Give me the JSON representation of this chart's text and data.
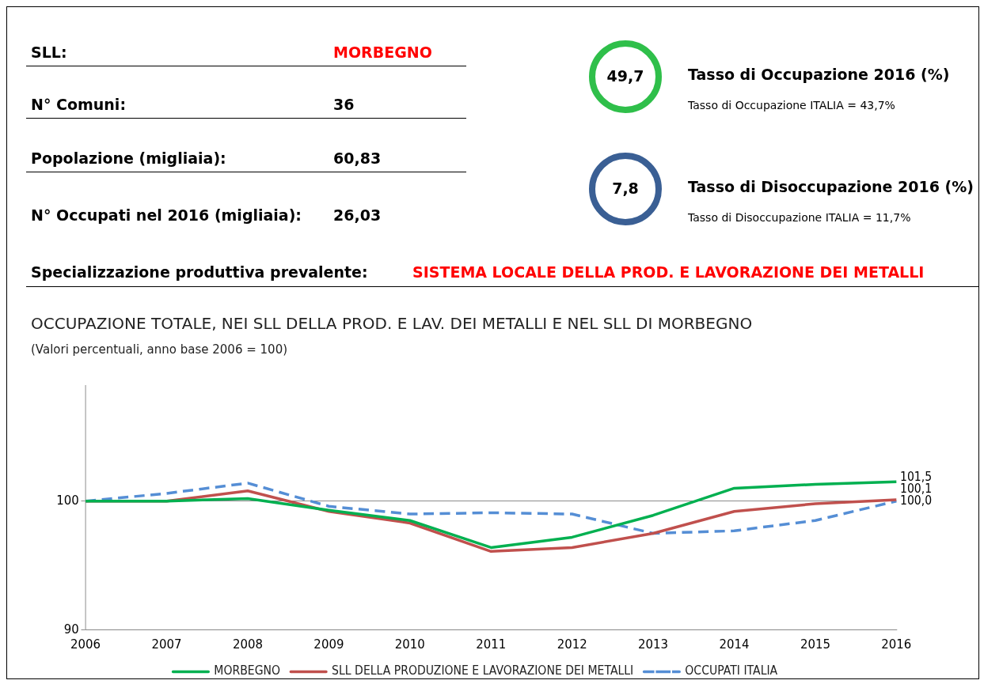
{
  "chart_data": [
    {
      "type": "other",
      "annotations": [
        "SLL:",
        "MORBEGNO",
        "N° Comuni:",
        "36",
        "Popolazione (migliaia):",
        "60,83",
        "N° Occupati nel 2016 (migliaia):",
        "26,03",
        "49,7",
        "Tasso di Occupazione 2016 (%)",
        "Tasso di Occupazione ITALIA = 43,7%",
        "7,8",
        "Tasso di Disoccupazione 2016 (%)",
        "Tasso di Disoccupazione ITALIA = 11,7%",
        "Specializzazione produttiva prevalente:",
        "SISTEMA LOCALE DELLA PROD. E LAVORAZIONE DEI METALLI"
      ]
    },
    {
      "type": "line",
      "title": "OCCUPAZIONE TOTALE, NEI SLL DELLA PROD. E LAV. DEI METALLI E NEL SLL DI MORBEGNO",
      "subtitle": "(Valori percentuali, anno base 2006 = 100)",
      "categories": [
        "2006",
        "2007",
        "2008",
        "2009",
        "2010",
        "2011",
        "2012",
        "2013",
        "2014",
        "2015",
        "2016"
      ],
      "ylim": [
        90,
        109
      ],
      "yticks": [
        90,
        100
      ],
      "grid": "y",
      "legend": "bottom",
      "marker": "none",
      "series": [
        {
          "name": "MORBEGNO",
          "color": "#00b050",
          "line_style": "solid",
          "values": [
            100,
            100,
            100.2,
            99.3,
            98.5,
            96.4,
            97.2,
            98.9,
            101.0,
            101.3,
            101.5
          ],
          "value_labels": [
            null,
            null,
            null,
            null,
            null,
            null,
            null,
            null,
            null,
            null,
            "101,5"
          ]
        },
        {
          "name": "SLL DELLA PRODUZIONE E LAVORAZIONE DEI METALLI",
          "color": "#c0504d",
          "line_style": "solid",
          "values": [
            100,
            100,
            100.8,
            99.2,
            98.3,
            96.1,
            96.4,
            97.5,
            99.2,
            99.8,
            100.1
          ],
          "value_labels": [
            null,
            null,
            null,
            null,
            null,
            null,
            null,
            null,
            null,
            null,
            "100,1"
          ]
        },
        {
          "name": "OCCUPATI ITALIA",
          "color": "#558ed5",
          "line_style": "dashed",
          "values": [
            100,
            100.6,
            101.4,
            99.6,
            99.0,
            99.1,
            99.0,
            97.5,
            97.7,
            98.5,
            100.0
          ],
          "value_labels": [
            null,
            null,
            null,
            null,
            null,
            null,
            null,
            null,
            null,
            null,
            "100,0"
          ]
        }
      ]
    }
  ]
}
